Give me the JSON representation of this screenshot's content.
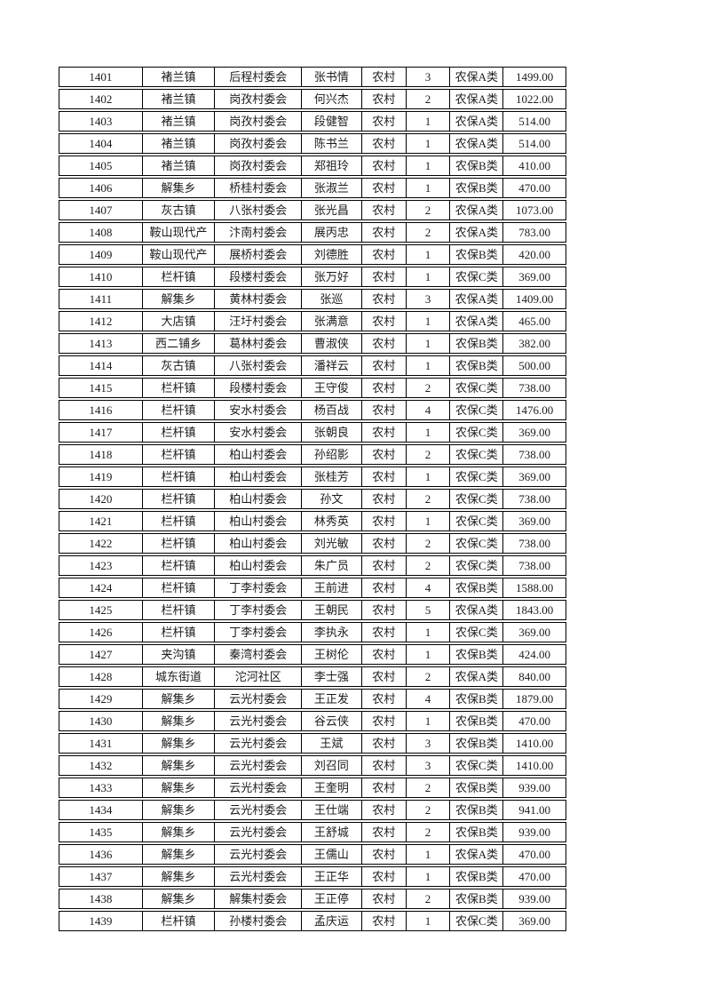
{
  "page": {
    "background_color": "#ffffff",
    "text_color": "#1c1c1c",
    "grid_color": "#000000",
    "description": "printed benefit payment table page, rows 1401-1439, no header row visible"
  },
  "table": {
    "columns": [
      {
        "key": "id",
        "name": "serial-number",
        "css": "c-id"
      },
      {
        "key": "town",
        "name": "town-name",
        "css": "c-town"
      },
      {
        "key": "village",
        "name": "village-committee",
        "css": "c-village"
      },
      {
        "key": "person",
        "name": "person-name",
        "css": "c-person"
      },
      {
        "key": "residence",
        "name": "residence-type",
        "css": "c-residence"
      },
      {
        "key": "count",
        "name": "person-count",
        "css": "c-count"
      },
      {
        "key": "category",
        "name": "insurance-category",
        "css": "c-category"
      },
      {
        "key": "amount",
        "name": "amount",
        "css": "c-amount"
      }
    ],
    "rows": [
      {
        "id": "1401",
        "town": "褚兰镇",
        "village": "后程村委会",
        "person": "张书情",
        "residence": "农村",
        "count": "3",
        "category": "农保A类",
        "amount": "1499.00"
      },
      {
        "id": "1402",
        "town": "褚兰镇",
        "village": "岗孜村委会",
        "person": "何兴杰",
        "residence": "农村",
        "count": "2",
        "category": "农保A类",
        "amount": "1022.00"
      },
      {
        "id": "1403",
        "town": "褚兰镇",
        "village": "岗孜村委会",
        "person": "段健智",
        "residence": "农村",
        "count": "1",
        "category": "农保A类",
        "amount": "514.00"
      },
      {
        "id": "1404",
        "town": "褚兰镇",
        "village": "岗孜村委会",
        "person": "陈书兰",
        "residence": "农村",
        "count": "1",
        "category": "农保A类",
        "amount": "514.00"
      },
      {
        "id": "1405",
        "town": "褚兰镇",
        "village": "岗孜村委会",
        "person": "郑祖玲",
        "residence": "农村",
        "count": "1",
        "category": "农保B类",
        "amount": "410.00"
      },
      {
        "id": "1406",
        "town": "解集乡",
        "village": "桥桂村委会",
        "person": "张淑兰",
        "residence": "农村",
        "count": "1",
        "category": "农保B类",
        "amount": "470.00"
      },
      {
        "id": "1407",
        "town": "灰古镇",
        "village": "八张村委会",
        "person": "张光昌",
        "residence": "农村",
        "count": "2",
        "category": "农保A类",
        "amount": "1073.00"
      },
      {
        "id": "1408",
        "town": "鞍山现代产",
        "village": "汴南村委会",
        "person": "展丙忠",
        "residence": "农村",
        "count": "2",
        "category": "农保A类",
        "amount": "783.00"
      },
      {
        "id": "1409",
        "town": "鞍山现代产",
        "village": "展桥村委会",
        "person": "刘德胜",
        "residence": "农村",
        "count": "1",
        "category": "农保B类",
        "amount": "420.00"
      },
      {
        "id": "1410",
        "town": "栏杆镇",
        "village": "段楼村委会",
        "person": "张万好",
        "residence": "农村",
        "count": "1",
        "category": "农保C类",
        "amount": "369.00"
      },
      {
        "id": "1411",
        "town": "解集乡",
        "village": "黄林村委会",
        "person": "张巡",
        "residence": "农村",
        "count": "3",
        "category": "农保A类",
        "amount": "1409.00"
      },
      {
        "id": "1412",
        "town": "大店镇",
        "village": "汪圩村委会",
        "person": "张满意",
        "residence": "农村",
        "count": "1",
        "category": "农保A类",
        "amount": "465.00"
      },
      {
        "id": "1413",
        "town": "西二铺乡",
        "village": "葛林村委会",
        "person": "曹淑侠",
        "residence": "农村",
        "count": "1",
        "category": "农保B类",
        "amount": "382.00"
      },
      {
        "id": "1414",
        "town": "灰古镇",
        "village": "八张村委会",
        "person": "潘祥云",
        "residence": "农村",
        "count": "1",
        "category": "农保B类",
        "amount": "500.00"
      },
      {
        "id": "1415",
        "town": "栏杆镇",
        "village": "段楼村委会",
        "person": "王守俊",
        "residence": "农村",
        "count": "2",
        "category": "农保C类",
        "amount": "738.00"
      },
      {
        "id": "1416",
        "town": "栏杆镇",
        "village": "安水村委会",
        "person": "杨百战",
        "residence": "农村",
        "count": "4",
        "category": "农保C类",
        "amount": "1476.00"
      },
      {
        "id": "1417",
        "town": "栏杆镇",
        "village": "安水村委会",
        "person": "张朝良",
        "residence": "农村",
        "count": "1",
        "category": "农保C类",
        "amount": "369.00"
      },
      {
        "id": "1418",
        "town": "栏杆镇",
        "village": "柏山村委会",
        "person": "孙绍影",
        "residence": "农村",
        "count": "2",
        "category": "农保C类",
        "amount": "738.00"
      },
      {
        "id": "1419",
        "town": "栏杆镇",
        "village": "柏山村委会",
        "person": "张桂芳",
        "residence": "农村",
        "count": "1",
        "category": "农保C类",
        "amount": "369.00"
      },
      {
        "id": "1420",
        "town": "栏杆镇",
        "village": "柏山村委会",
        "person": "孙文",
        "residence": "农村",
        "count": "2",
        "category": "农保C类",
        "amount": "738.00"
      },
      {
        "id": "1421",
        "town": "栏杆镇",
        "village": "柏山村委会",
        "person": "林秀英",
        "residence": "农村",
        "count": "1",
        "category": "农保C类",
        "amount": "369.00"
      },
      {
        "id": "1422",
        "town": "栏杆镇",
        "village": "柏山村委会",
        "person": "刘光敏",
        "residence": "农村",
        "count": "2",
        "category": "农保C类",
        "amount": "738.00"
      },
      {
        "id": "1423",
        "town": "栏杆镇",
        "village": "柏山村委会",
        "person": "朱广员",
        "residence": "农村",
        "count": "2",
        "category": "农保C类",
        "amount": "738.00"
      },
      {
        "id": "1424",
        "town": "栏杆镇",
        "village": "丁李村委会",
        "person": "王前进",
        "residence": "农村",
        "count": "4",
        "category": "农保B类",
        "amount": "1588.00"
      },
      {
        "id": "1425",
        "town": "栏杆镇",
        "village": "丁李村委会",
        "person": "王朝民",
        "residence": "农村",
        "count": "5",
        "category": "农保A类",
        "amount": "1843.00"
      },
      {
        "id": "1426",
        "town": "栏杆镇",
        "village": "丁李村委会",
        "person": "李执永",
        "residence": "农村",
        "count": "1",
        "category": "农保C类",
        "amount": "369.00"
      },
      {
        "id": "1427",
        "town": "夹沟镇",
        "village": "秦湾村委会",
        "person": "王树伦",
        "residence": "农村",
        "count": "1",
        "category": "农保B类",
        "amount": "424.00"
      },
      {
        "id": "1428",
        "town": "城东街道",
        "village": "沱河社区",
        "person": "李士强",
        "residence": "农村",
        "count": "2",
        "category": "农保A类",
        "amount": "840.00"
      },
      {
        "id": "1429",
        "town": "解集乡",
        "village": "云光村委会",
        "person": "王正发",
        "residence": "农村",
        "count": "4",
        "category": "农保B类",
        "amount": "1879.00"
      },
      {
        "id": "1430",
        "town": "解集乡",
        "village": "云光村委会",
        "person": "谷云侠",
        "residence": "农村",
        "count": "1",
        "category": "农保B类",
        "amount": "470.00"
      },
      {
        "id": "1431",
        "town": "解集乡",
        "village": "云光村委会",
        "person": "王斌",
        "residence": "农村",
        "count": "3",
        "category": "农保B类",
        "amount": "1410.00"
      },
      {
        "id": "1432",
        "town": "解集乡",
        "village": "云光村委会",
        "person": "刘召同",
        "residence": "农村",
        "count": "3",
        "category": "农保C类",
        "amount": "1410.00"
      },
      {
        "id": "1433",
        "town": "解集乡",
        "village": "云光村委会",
        "person": "王奎明",
        "residence": "农村",
        "count": "2",
        "category": "农保B类",
        "amount": "939.00"
      },
      {
        "id": "1434",
        "town": "解集乡",
        "village": "云光村委会",
        "person": "王仕端",
        "residence": "农村",
        "count": "2",
        "category": "农保B类",
        "amount": "941.00"
      },
      {
        "id": "1435",
        "town": "解集乡",
        "village": "云光村委会",
        "person": "王舒城",
        "residence": "农村",
        "count": "2",
        "category": "农保B类",
        "amount": "939.00"
      },
      {
        "id": "1436",
        "town": "解集乡",
        "village": "云光村委会",
        "person": "王儒山",
        "residence": "农村",
        "count": "1",
        "category": "农保A类",
        "amount": "470.00"
      },
      {
        "id": "1437",
        "town": "解集乡",
        "village": "云光村委会",
        "person": "王正华",
        "residence": "农村",
        "count": "1",
        "category": "农保B类",
        "amount": "470.00"
      },
      {
        "id": "1438",
        "town": "解集乡",
        "village": "解集村委会",
        "person": "王正停",
        "residence": "农村",
        "count": "2",
        "category": "农保B类",
        "amount": "939.00"
      },
      {
        "id": "1439",
        "town": "栏杆镇",
        "village": "孙楼村委会",
        "person": "孟庆运",
        "residence": "农村",
        "count": "1",
        "category": "农保C类",
        "amount": "369.00"
      }
    ]
  }
}
